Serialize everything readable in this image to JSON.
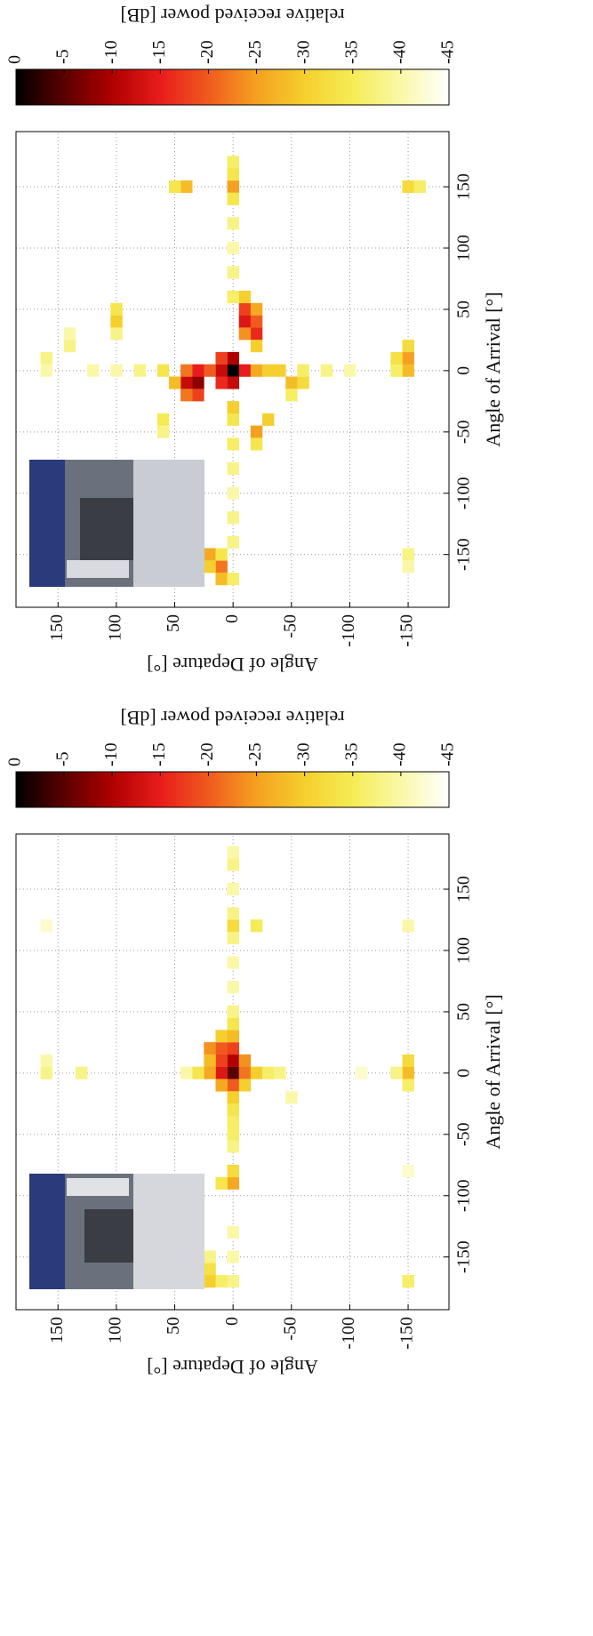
{
  "chart_data": [
    {
      "type": "heatmap",
      "x_label": "Angle of Arrival [°]",
      "y_label": "Angle of Depature [°]",
      "colorbar_label": "relative received power [dB]",
      "x": [
        0,
        10,
        -10,
        0,
        0,
        10,
        -10,
        -10,
        -10,
        0,
        -20,
        -20,
        0,
        -10,
        40,
        30,
        50,
        40,
        30,
        50,
        60,
        20,
        150,
        150,
        160,
        140,
        150,
        10,
        0,
        20,
        10,
        0,
        -160,
        -150,
        -170,
        -160,
        -150,
        40,
        50,
        30,
        0,
        -10,
        -10,
        -20,
        -50,
        -40,
        -60,
        -40,
        -50,
        20,
        30,
        10,
        0,
        150,
        150,
        -150,
        -160,
        -170,
        -140,
        -120,
        -100,
        -80,
        -60,
        -40,
        -30,
        60,
        80,
        100,
        120,
        170,
        0,
        0,
        0,
        0,
        0,
        0,
        0,
        0,
        0,
        0
      ],
      "y": [
        0,
        0,
        0,
        10,
        -10,
        10,
        10,
        30,
        40,
        30,
        30,
        40,
        40,
        50,
        -10,
        -20,
        -10,
        -20,
        -10,
        -20,
        -10,
        -20,
        0,
        40,
        0,
        0,
        50,
        -150,
        -150,
        -150,
        -140,
        -140,
        10,
        20,
        10,
        20,
        10,
        100,
        100,
        100,
        -40,
        -50,
        -60,
        -50,
        -20,
        -30,
        -20,
        60,
        60,
        140,
        140,
        160,
        160,
        -150,
        -160,
        -150,
        -150,
        0,
        0,
        0,
        0,
        0,
        0,
        0,
        0,
        0,
        0,
        0,
        0,
        0,
        -20,
        -30,
        -60,
        -80,
        -100,
        20,
        60,
        80,
        100,
        120
      ],
      "values": [
        0,
        -10,
        -12,
        -12,
        -15,
        -18,
        -16,
        -8,
        -12,
        -15,
        -18,
        -22,
        -22,
        -28,
        -14,
        -16,
        -18,
        -20,
        -24,
        -26,
        -30,
        -30,
        -25,
        -28,
        -34,
        -34,
        -34,
        -25,
        -28,
        -32,
        -33,
        -36,
        -22,
        -26,
        -28,
        -30,
        -34,
        -30,
        -34,
        -38,
        -30,
        -28,
        -32,
        -36,
        -25,
        -30,
        -34,
        -35,
        -38,
        -38,
        -40,
        -38,
        -40,
        -32,
        -36,
        -38,
        -40,
        -36,
        -38,
        -38,
        -40,
        -38,
        -36,
        -34,
        -30,
        -36,
        -38,
        -40,
        -38,
        -36,
        -26,
        -30,
        -36,
        -38,
        -40,
        -20,
        -34,
        -38,
        -40,
        -40
      ],
      "xlim": [
        -193,
        195
      ],
      "ylim": [
        -185,
        186
      ],
      "xticks": [
        -150,
        -100,
        -50,
        0,
        50,
        100,
        150
      ],
      "yticks": [
        -150,
        -100,
        -50,
        0,
        50,
        100,
        150
      ],
      "clim": [
        0,
        -45
      ],
      "cticks": [
        0,
        -5,
        -10,
        -15,
        -20,
        -25,
        -30,
        -35,
        -40,
        -45
      ],
      "colormap": [
        "#000000",
        "#5a0000",
        "#b00000",
        "#e81c1c",
        "#f05a1e",
        "#f5a020",
        "#f5cf2e",
        "#f5ec55",
        "#faf8a8",
        "#ffffff"
      ],
      "grid": true
    },
    {
      "type": "heatmap",
      "x_label": "Angle of Arrival [°]",
      "y_label": "Angle of Depature [°]",
      "colorbar_label": "relative received power [dB]",
      "x": [
        0,
        10,
        0,
        10,
        20,
        -10,
        20,
        0,
        10,
        -10,
        20,
        10,
        30,
        30,
        -20,
        0,
        -10,
        0,
        10,
        -10,
        0,
        0,
        10,
        0,
        -90,
        -80,
        -90,
        120,
        120,
        130,
        110,
        -160,
        -170,
        -150,
        -170,
        120,
        120,
        -80,
        -170,
        -170,
        -150,
        -130,
        -60,
        -50,
        -40,
        -30,
        40,
        50,
        70,
        90,
        150,
        170,
        180,
        0,
        0,
        0,
        0,
        0,
        -20,
        0
      ],
      "y": [
        0,
        0,
        10,
        10,
        10,
        0,
        0,
        -10,
        -10,
        10,
        20,
        20,
        10,
        0,
        0,
        20,
        -10,
        -150,
        -150,
        -150,
        -140,
        160,
        160,
        130,
        0,
        0,
        10,
        0,
        -20,
        0,
        0,
        20,
        20,
        20,
        10,
        -150,
        160,
        -150,
        -150,
        0,
        0,
        0,
        0,
        0,
        0,
        0,
        0,
        0,
        0,
        0,
        0,
        0,
        0,
        -20,
        -30,
        -40,
        30,
        40,
        -50,
        -110
      ],
      "values": [
        -5,
        -10,
        -14,
        -18,
        -20,
        -20,
        -18,
        -22,
        -24,
        -26,
        -24,
        -28,
        -30,
        -28,
        -30,
        -26,
        -30,
        -28,
        -32,
        -36,
        -38,
        -38,
        -40,
        -38,
        -26,
        -32,
        -34,
        -32,
        -35,
        -38,
        -38,
        -33,
        -30,
        -38,
        -36,
        -40,
        -42,
        -42,
        -36,
        -38,
        -40,
        -40,
        -38,
        -36,
        -36,
        -34,
        -34,
        -38,
        -40,
        -40,
        -40,
        -38,
        -40,
        -30,
        -36,
        -38,
        -34,
        -40,
        -40,
        -42
      ],
      "xlim": [
        -193,
        195
      ],
      "ylim": [
        -185,
        186
      ],
      "xticks": [
        -150,
        -100,
        -50,
        0,
        50,
        100,
        150
      ],
      "yticks": [
        -150,
        -100,
        -50,
        0,
        50,
        100,
        150
      ],
      "clim": [
        0,
        -45
      ],
      "cticks": [
        0,
        -5,
        -10,
        -15,
        -20,
        -25,
        -30,
        -35,
        -40,
        -45
      ],
      "colormap": [
        "#000000",
        "#5a0000",
        "#b00000",
        "#e81c1c",
        "#f05a1e",
        "#f5a020",
        "#f5cf2e",
        "#f5ec55",
        "#faf8a8",
        "#ffffff"
      ],
      "grid": true
    }
  ]
}
